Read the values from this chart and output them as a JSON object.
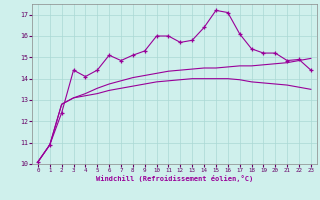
{
  "xlabel": "Windchill (Refroidissement éolien,°C)",
  "background_color": "#cff0ec",
  "grid_color": "#aad8d4",
  "line_color": "#990099",
  "x_values": [
    0,
    1,
    2,
    3,
    4,
    5,
    6,
    7,
    8,
    9,
    10,
    11,
    12,
    13,
    14,
    15,
    16,
    17,
    18,
    19,
    20,
    21,
    22,
    23
  ],
  "line1": [
    10.1,
    10.9,
    12.4,
    14.4,
    14.1,
    14.4,
    15.1,
    14.85,
    15.1,
    15.3,
    16.0,
    16.0,
    15.7,
    15.8,
    16.4,
    17.2,
    17.1,
    16.1,
    15.4,
    15.2,
    15.2,
    14.85,
    14.9,
    14.4
  ],
  "line2": [
    10.1,
    10.9,
    12.8,
    13.1,
    13.2,
    13.3,
    13.45,
    13.55,
    13.65,
    13.75,
    13.85,
    13.9,
    13.95,
    14.0,
    14.0,
    14.0,
    14.0,
    13.95,
    13.85,
    13.8,
    13.75,
    13.7,
    13.6,
    13.5
  ],
  "line3": [
    10.1,
    10.9,
    12.8,
    13.1,
    13.3,
    13.55,
    13.75,
    13.9,
    14.05,
    14.15,
    14.25,
    14.35,
    14.4,
    14.45,
    14.5,
    14.5,
    14.55,
    14.6,
    14.6,
    14.65,
    14.7,
    14.75,
    14.85,
    14.95
  ],
  "ylim": [
    10,
    17.5
  ],
  "yticks": [
    10,
    11,
    12,
    13,
    14,
    15,
    16,
    17
  ],
  "xlim": [
    -0.5,
    23.5
  ]
}
